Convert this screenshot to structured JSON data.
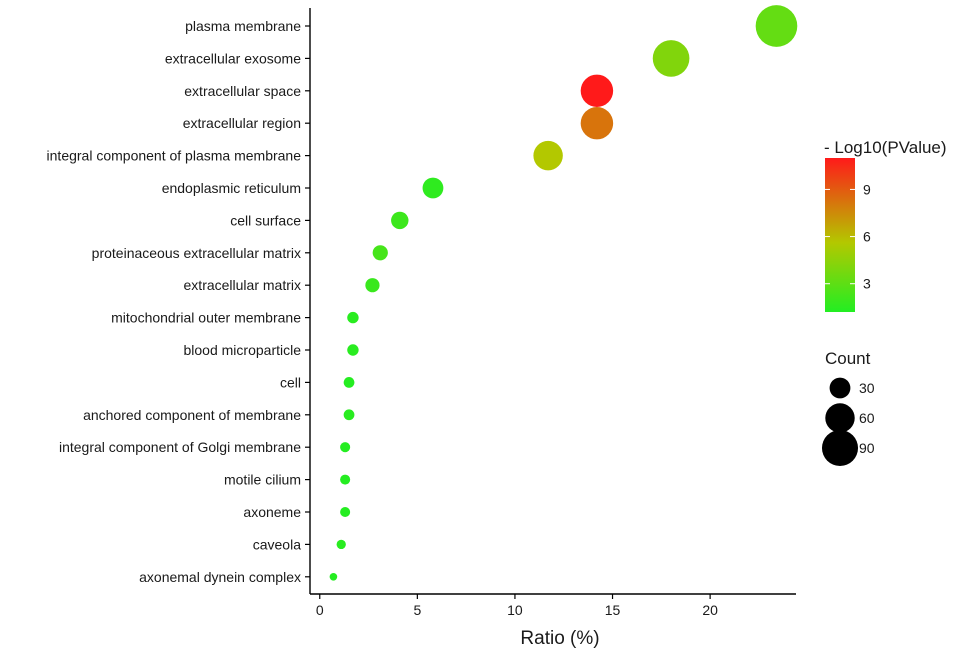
{
  "chart_data": {
    "type": "scatter",
    "title": "",
    "xlabel": "Ratio (%)",
    "ylabel": "",
    "xlim": [
      -0.5,
      24.4
    ],
    "x_ticks": [
      0,
      5,
      10,
      15,
      20
    ],
    "grid": false,
    "categories": [
      "plasma membrane",
      "extracellular exosome",
      "extracellular space",
      "extracellular region",
      "integral component of plasma membrane",
      "endoplasmic reticulum",
      "cell surface",
      "proteinaceous extracellular matrix",
      "extracellular matrix",
      "mitochondrial outer membrane",
      "blood microparticle",
      "cell",
      "anchored component of membrane",
      "integral component of Golgi membrane",
      "motile cilium",
      "axoneme",
      "caveola",
      "axonemal dynein complex"
    ],
    "points": [
      {
        "category": "plasma membrane",
        "ratio": 23.4,
        "count": 120,
        "neg_log10_p": 3.2
      },
      {
        "category": "extracellular exosome",
        "ratio": 18.0,
        "count": 93,
        "neg_log10_p": 4.1
      },
      {
        "category": "extracellular space",
        "ratio": 14.2,
        "count": 73,
        "neg_log10_p": 11.0
      },
      {
        "category": "extracellular region",
        "ratio": 14.2,
        "count": 73,
        "neg_log10_p": 8.2
      },
      {
        "category": "integral component of plasma membrane",
        "ratio": 11.7,
        "count": 60,
        "neg_log10_p": 5.6
      },
      {
        "category": "endoplasmic reticulum",
        "ratio": 5.8,
        "count": 30,
        "neg_log10_p": 1.6
      },
      {
        "category": "cell surface",
        "ratio": 4.1,
        "count": 21,
        "neg_log10_p": 2.0
      },
      {
        "category": "proteinaceous extracellular matrix",
        "ratio": 3.1,
        "count": 16,
        "neg_log10_p": 2.3
      },
      {
        "category": "extracellular matrix",
        "ratio": 2.7,
        "count": 14,
        "neg_log10_p": 1.9
      },
      {
        "category": "mitochondrial outer membrane",
        "ratio": 1.7,
        "count": 9,
        "neg_log10_p": 1.4
      },
      {
        "category": "blood microparticle",
        "ratio": 1.7,
        "count": 9,
        "neg_log10_p": 1.4
      },
      {
        "category": "cell",
        "ratio": 1.5,
        "count": 8,
        "neg_log10_p": 1.3
      },
      {
        "category": "anchored component of membrane",
        "ratio": 1.5,
        "count": 8,
        "neg_log10_p": 1.4
      },
      {
        "category": "integral component of Golgi membrane",
        "ratio": 1.3,
        "count": 7,
        "neg_log10_p": 1.3
      },
      {
        "category": "motile cilium",
        "ratio": 1.3,
        "count": 7,
        "neg_log10_p": 1.3
      },
      {
        "category": "axoneme",
        "ratio": 1.3,
        "count": 7,
        "neg_log10_p": 1.3
      },
      {
        "category": "caveola",
        "ratio": 1.1,
        "count": 6,
        "neg_log10_p": 1.4
      },
      {
        "category": "axonemal dynein complex",
        "ratio": 0.7,
        "count": 4,
        "neg_log10_p": 1.3
      }
    ],
    "color_legend": {
      "title": "- Log10(PValue)",
      "ticks": [
        3,
        6,
        9
      ],
      "min": 1.2,
      "max": 11.0,
      "low_color": "#22ee22",
      "mid_color": "#b3c800",
      "high_color": "#ff1a1a"
    },
    "size_legend": {
      "title": "Count",
      "values": [
        30,
        60,
        90
      ],
      "labels": [
        "30",
        "60",
        "90"
      ],
      "symbol_color": "#000000"
    }
  }
}
